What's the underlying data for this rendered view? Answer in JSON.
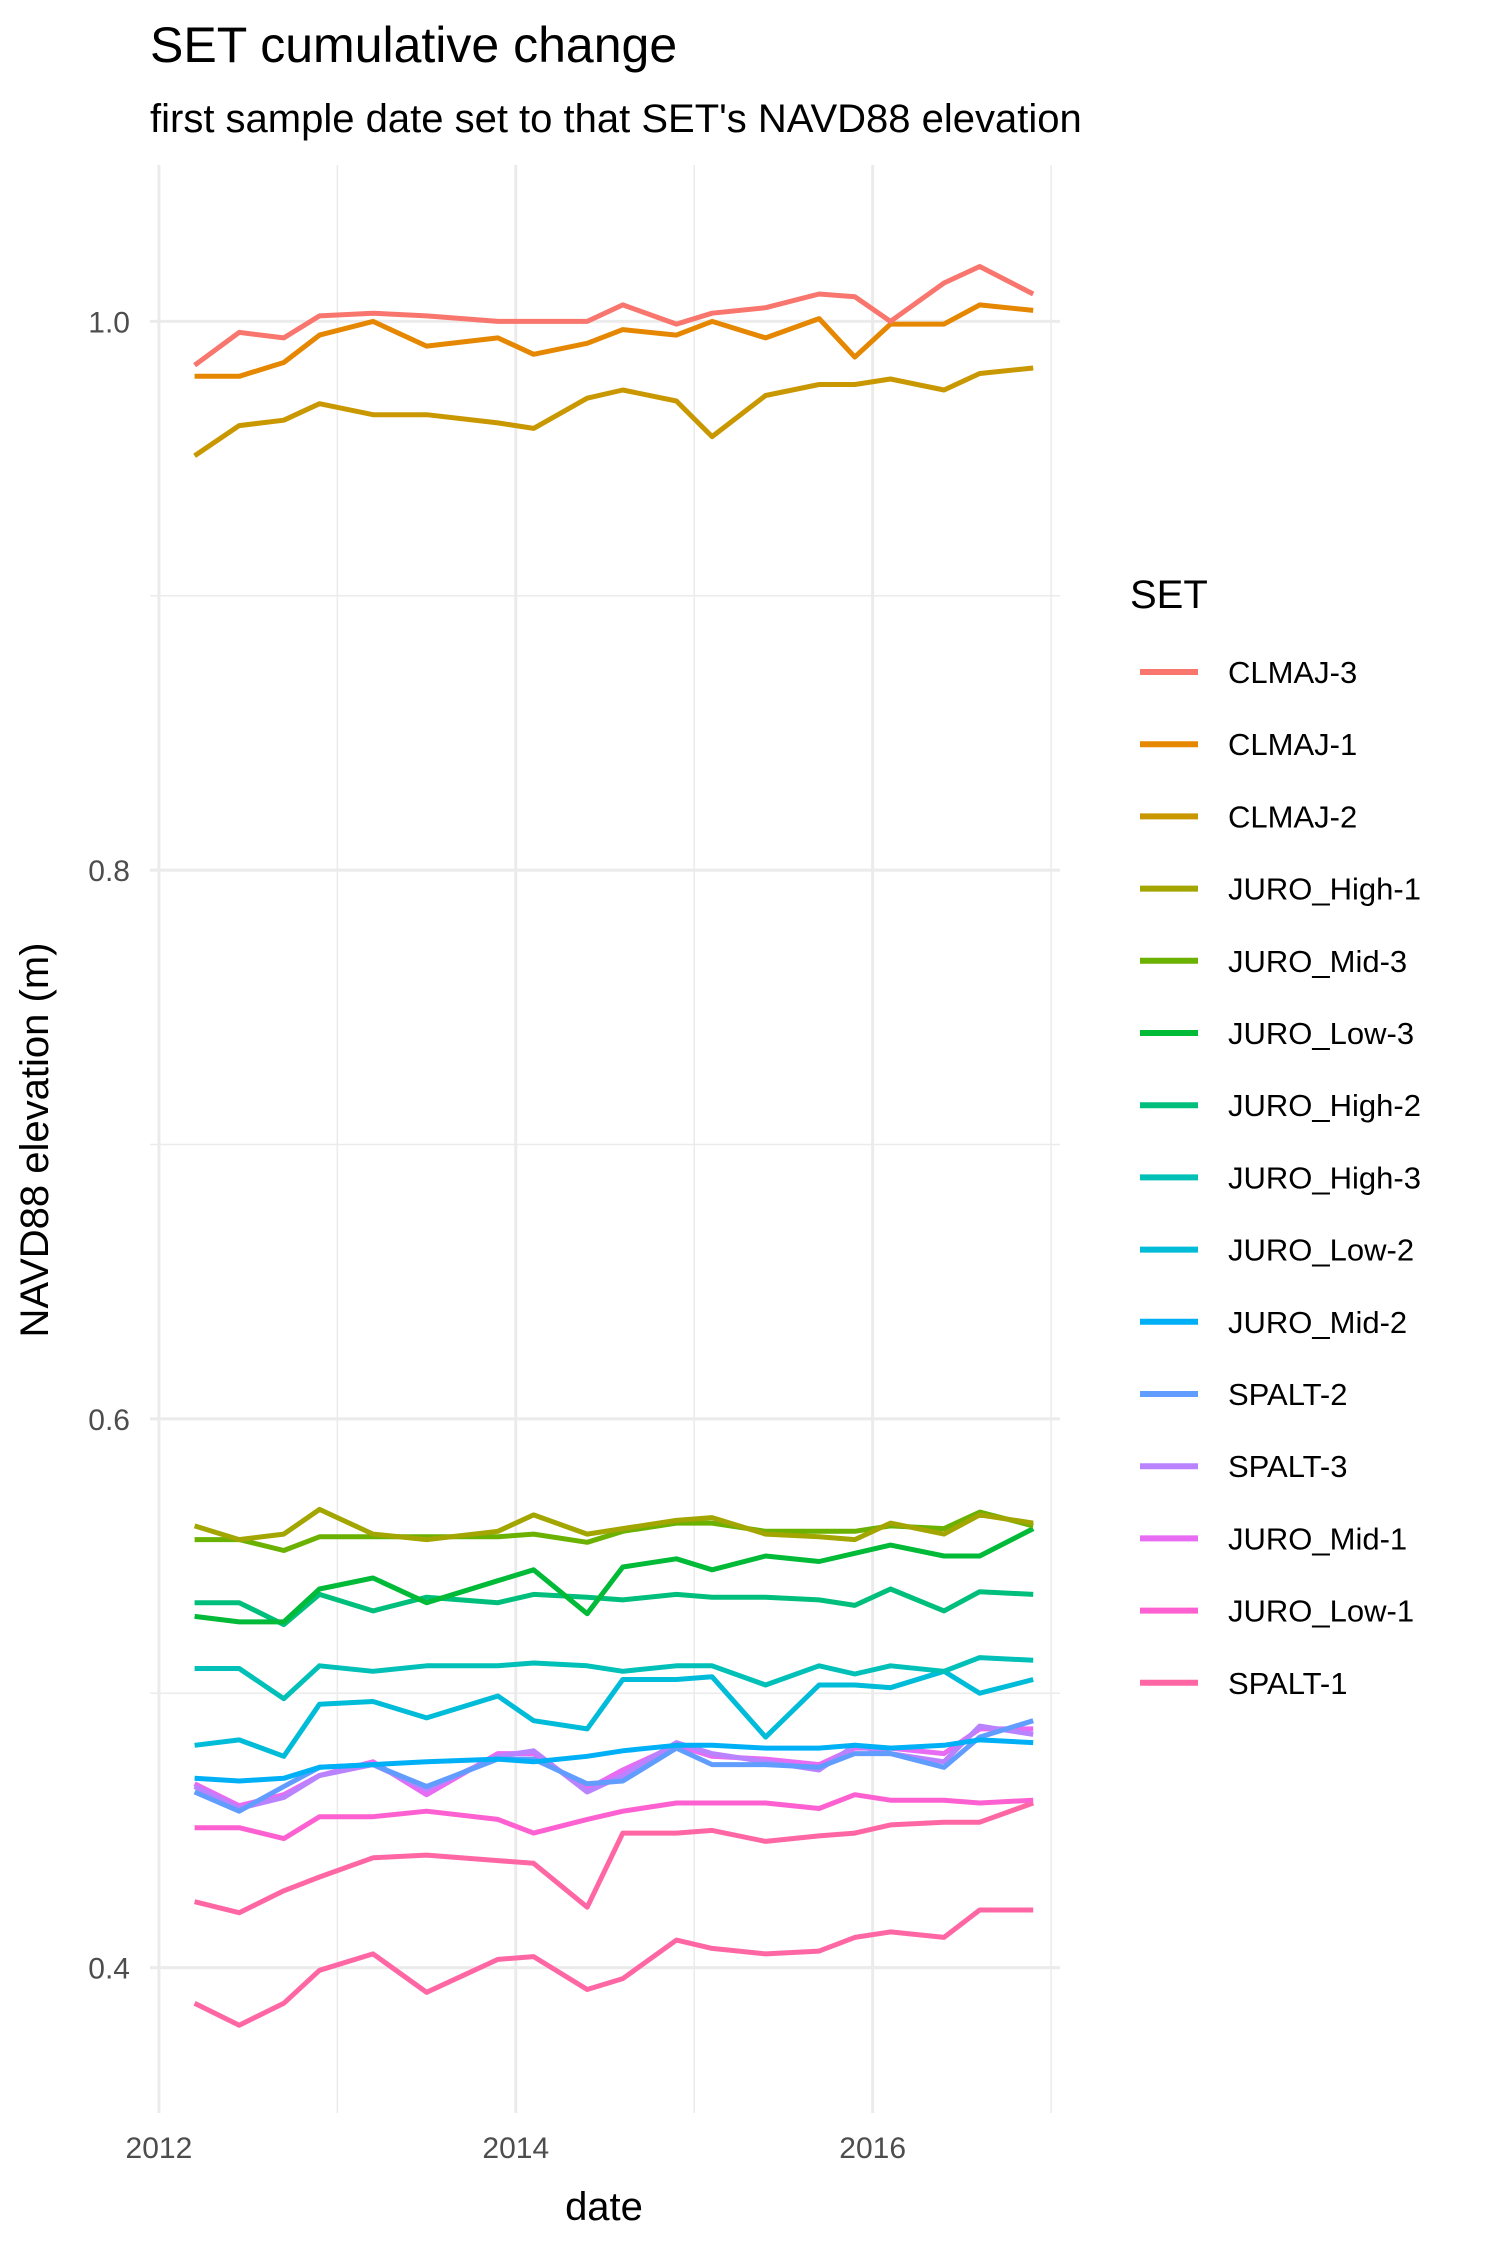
{
  "chart_data": {
    "type": "line",
    "title": "SET cumulative change",
    "subtitle": "first sample date set to that SET's NAVD88 elevation",
    "xlabel": "date",
    "ylabel": "NAVD88 elevation (m)",
    "xlim": [
      2011.95,
      2017.05
    ],
    "ylim": [
      0.347,
      1.057
    ],
    "x_ticks": [
      2012,
      2014,
      2016
    ],
    "x_tick_labels": [
      "2012",
      "2014",
      "2016"
    ],
    "y_ticks": [
      0.4,
      0.6,
      0.8,
      1.0
    ],
    "y_tick_labels": [
      "0.4",
      "0.6",
      "0.8",
      "1.0"
    ],
    "grid": true,
    "legend": {
      "title": "SET",
      "position": "right"
    },
    "x": [
      2012.2,
      2012.45,
      2012.7,
      2012.9,
      2013.2,
      2013.5,
      2013.9,
      2014.1,
      2014.4,
      2014.6,
      2014.9,
      2015.1,
      2015.4,
      2015.7,
      2015.9,
      2016.1,
      2016.4,
      2016.6,
      2016.9
    ],
    "series": [
      {
        "name": "CLMAJ-3",
        "color": "#F8766D",
        "values": [
          0.984,
          0.996,
          0.994,
          1.002,
          1.003,
          1.002,
          1.0,
          1.0,
          1.0,
          1.006,
          0.999,
          1.003,
          1.005,
          1.01,
          1.009,
          1.0,
          1.014,
          1.02,
          1.01
        ]
      },
      {
        "name": "CLMAJ-1",
        "color": "#E58700",
        "values": [
          0.98,
          0.98,
          0.985,
          0.995,
          1.0,
          0.991,
          0.994,
          0.988,
          0.992,
          0.997,
          0.995,
          1.0,
          0.994,
          1.001,
          0.987,
          0.999,
          0.999,
          1.006,
          1.004
        ]
      },
      {
        "name": "CLMAJ-2",
        "color": "#C99800",
        "values": [
          0.951,
          0.962,
          0.964,
          0.97,
          0.966,
          0.966,
          0.963,
          0.961,
          0.972,
          0.975,
          0.971,
          0.958,
          0.973,
          0.977,
          0.977,
          0.979,
          0.975,
          0.981,
          0.983
        ]
      },
      {
        "name": "JURO_High-1",
        "color": "#A3A500",
        "values": [
          0.561,
          0.556,
          0.558,
          0.567,
          0.558,
          0.556,
          0.559,
          0.565,
          0.558,
          0.56,
          0.563,
          0.564,
          0.558,
          0.557,
          0.556,
          0.562,
          0.558,
          0.565,
          0.562
        ]
      },
      {
        "name": "JURO_Mid-3",
        "color": "#6BB100",
        "values": [
          0.556,
          0.556,
          0.552,
          0.557,
          0.557,
          0.557,
          0.557,
          0.558,
          0.555,
          0.559,
          0.562,
          0.562,
          0.559,
          0.559,
          0.559,
          0.561,
          0.56,
          0.566,
          0.561
        ]
      },
      {
        "name": "JURO_Low-3",
        "color": "#00BA38",
        "values": [
          0.528,
          0.526,
          0.526,
          0.538,
          0.542,
          0.533,
          0.541,
          0.545,
          0.529,
          0.546,
          0.549,
          0.545,
          0.55,
          0.548,
          0.551,
          0.554,
          0.55,
          0.55,
          0.56
        ]
      },
      {
        "name": "JURO_High-2",
        "color": "#00BF7D",
        "values": [
          0.533,
          0.533,
          0.525,
          0.536,
          0.53,
          0.535,
          0.533,
          0.536,
          0.535,
          0.534,
          0.536,
          0.535,
          0.535,
          0.534,
          0.532,
          0.538,
          0.53,
          0.537,
          0.536
        ]
      },
      {
        "name": "JURO_High-3",
        "color": "#00C0B8",
        "values": [
          0.509,
          0.509,
          0.498,
          0.51,
          0.508,
          0.51,
          0.51,
          0.511,
          0.51,
          0.508,
          0.51,
          0.51,
          0.503,
          0.51,
          0.507,
          0.51,
          0.508,
          0.513,
          0.512
        ]
      },
      {
        "name": "JURO_Low-2",
        "color": "#00BCD8",
        "values": [
          0.481,
          0.483,
          0.477,
          0.496,
          0.497,
          0.491,
          0.499,
          0.49,
          0.487,
          0.505,
          0.505,
          0.506,
          0.484,
          0.503,
          0.503,
          0.502,
          0.508,
          0.5,
          0.505
        ]
      },
      {
        "name": "JURO_Mid-2",
        "color": "#00B0F6",
        "values": [
          0.469,
          0.468,
          0.469,
          0.473,
          0.474,
          0.475,
          0.476,
          0.475,
          0.477,
          0.479,
          0.481,
          0.481,
          0.48,
          0.48,
          0.481,
          0.48,
          0.481,
          0.483,
          0.482
        ]
      },
      {
        "name": "SPALT-2",
        "color": "#619CFF",
        "values": [
          0.464,
          0.457,
          0.466,
          0.473,
          0.474,
          0.466,
          0.476,
          0.476,
          0.467,
          0.468,
          0.48,
          0.474,
          0.474,
          0.473,
          0.478,
          0.478,
          0.473,
          0.484,
          0.49
        ]
      },
      {
        "name": "SPALT-3",
        "color": "#B983FF",
        "values": [
          0.466,
          0.458,
          0.462,
          0.47,
          0.474,
          0.465,
          0.477,
          0.479,
          0.464,
          0.47,
          0.482,
          0.478,
          0.475,
          0.472,
          0.481,
          0.478,
          0.475,
          0.488,
          0.485
        ]
      },
      {
        "name": "JURO_Mid-1",
        "color": "#E76BF3",
        "values": [
          0.467,
          0.459,
          0.463,
          0.47,
          0.475,
          0.463,
          0.478,
          0.478,
          0.465,
          0.472,
          0.481,
          0.477,
          0.476,
          0.474,
          0.48,
          0.48,
          0.478,
          0.487,
          0.487
        ]
      },
      {
        "name": "JURO_Low-1",
        "color": "#FD61D1",
        "values": [
          0.451,
          0.451,
          0.447,
          0.455,
          0.455,
          0.457,
          0.454,
          0.449,
          0.454,
          0.457,
          0.46,
          0.46,
          0.46,
          0.458,
          0.463,
          0.461,
          0.461,
          0.46,
          0.461
        ]
      },
      {
        "name": "SPALT-1",
        "color": "#FF67A4",
        "values": [
          0.424,
          0.42,
          0.428,
          0.433,
          0.44,
          0.441,
          0.439,
          0.438,
          0.422,
          0.449,
          0.449,
          0.45,
          0.446,
          0.448,
          0.449,
          0.452,
          0.453,
          0.453,
          0.46
        ]
      },
      {
        "name": "",
        "color": "#FF67A4",
        "values": [
          0.387,
          0.379,
          0.387,
          0.399,
          0.405,
          0.391,
          0.403,
          0.404,
          0.392,
          0.396,
          0.41,
          0.407,
          0.405,
          0.406,
          0.411,
          0.413,
          0.411,
          0.421,
          0.421
        ]
      }
    ]
  }
}
